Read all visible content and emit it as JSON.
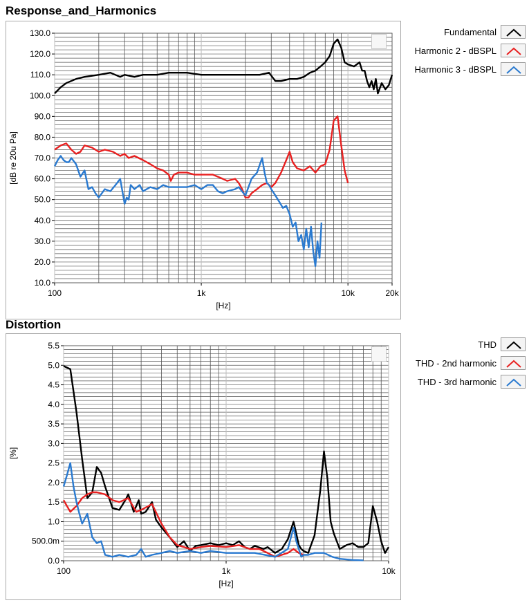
{
  "chart_data": [
    {
      "type": "line",
      "title": "Response_and_Harmonics",
      "xlabel": "[Hz]",
      "ylabel": "[dB re 20u Pa]",
      "xscale": "log",
      "xlim": [
        100,
        20000
      ],
      "ylim": [
        10,
        130
      ],
      "xticks": [
        100,
        1000,
        10000,
        20000
      ],
      "xtick_labels": [
        "100",
        "1k",
        "10k",
        "20k"
      ],
      "yticks": [
        10,
        20,
        30,
        40,
        50,
        60,
        70,
        80,
        90,
        100,
        110,
        120,
        130
      ],
      "ytick_labels": [
        "10.0",
        "20.0",
        "30.0",
        "40.0",
        "50.0",
        "60.0",
        "70.0",
        "80.0",
        "90.0",
        "100.0",
        "110.0",
        "120.0",
        "130.0"
      ],
      "grid": true,
      "legend_position": "right",
      "series": [
        {
          "name": "Fundamental",
          "color": "#000000",
          "x": [
            100,
            110,
            120,
            140,
            160,
            200,
            240,
            280,
            300,
            350,
            400,
            500,
            600,
            700,
            800,
            1000,
            1200,
            1500,
            2000,
            2500,
            2900,
            3200,
            3500,
            4000,
            4500,
            5000,
            5500,
            6000,
            6500,
            7000,
            7500,
            8000,
            8500,
            9000,
            9500,
            10000,
            11000,
            12000,
            12500,
            13000,
            13500,
            14000,
            14500,
            15000,
            15500,
            16000,
            17000,
            18000,
            19000,
            20000
          ],
          "y": [
            101,
            104,
            106,
            108,
            109,
            110,
            111,
            109,
            110,
            109,
            110,
            110,
            111,
            111,
            111,
            110,
            110,
            110,
            110,
            110,
            111,
            107,
            107,
            108,
            108,
            109,
            111,
            112,
            114,
            116,
            119,
            125,
            127,
            123,
            116,
            115,
            114,
            116,
            112,
            112,
            107,
            104,
            107,
            103,
            108,
            101,
            106,
            103,
            105,
            110
          ]
        },
        {
          "name": "Harmonic 2 - dBSPL",
          "color": "#e82020",
          "x": [
            100,
            110,
            120,
            130,
            140,
            150,
            160,
            180,
            200,
            220,
            250,
            280,
            300,
            320,
            350,
            400,
            450,
            500,
            550,
            600,
            620,
            650,
            700,
            800,
            900,
            1000,
            1200,
            1400,
            1500,
            1700,
            1800,
            1900,
            2000,
            2100,
            2200,
            2400,
            2600,
            2800,
            3000,
            3200,
            3500,
            3800,
            4000,
            4200,
            4500,
            5000,
            5500,
            6000,
            6500,
            7000,
            7500,
            8000,
            8500,
            9000,
            9500,
            10000
          ],
          "y": [
            74,
            76,
            77,
            74,
            72,
            73,
            76,
            75,
            73,
            74,
            73,
            71,
            72,
            70,
            71,
            69,
            67,
            65,
            64,
            62,
            59,
            62,
            63,
            63,
            62,
            62,
            62,
            60,
            59,
            60,
            58,
            55,
            51,
            51,
            53,
            55,
            57,
            58,
            56,
            58,
            63,
            69,
            73,
            68,
            65,
            64,
            66,
            63,
            66,
            67,
            74,
            88,
            90,
            76,
            64,
            58
          ]
        },
        {
          "name": "Harmonic 3 - dBSPL",
          "color": "#2a7ad0",
          "x": [
            100,
            105,
            110,
            115,
            120,
            125,
            130,
            140,
            150,
            160,
            170,
            180,
            190,
            200,
            220,
            240,
            260,
            280,
            300,
            310,
            320,
            330,
            350,
            380,
            400,
            450,
            500,
            550,
            600,
            700,
            800,
            900,
            1000,
            1100,
            1200,
            1300,
            1400,
            1500,
            1700,
            1800,
            2000,
            2200,
            2400,
            2600,
            2700,
            2800,
            2900,
            3000,
            3200,
            3400,
            3600,
            3800,
            4000,
            4200,
            4400,
            4600,
            4800,
            5000,
            5200,
            5400,
            5600,
            5800,
            6000,
            6200,
            6400,
            6600
          ],
          "y": [
            66,
            69,
            71,
            69,
            68,
            68,
            70,
            67,
            61,
            64,
            55,
            56,
            53,
            51,
            55,
            54,
            57,
            60,
            48,
            51,
            50,
            57,
            55,
            57,
            54,
            56,
            55,
            57,
            56,
            56,
            56,
            57,
            55,
            57,
            57,
            54,
            53,
            54,
            55,
            56,
            52,
            60,
            63,
            70,
            63,
            58,
            57,
            55,
            52,
            49,
            46,
            47,
            43,
            37,
            39,
            30,
            33,
            26,
            36,
            27,
            37,
            25,
            18,
            30,
            22,
            39
          ]
        }
      ]
    },
    {
      "type": "line",
      "title": "Distortion",
      "xlabel": "[Hz]",
      "ylabel": "[%]",
      "xscale": "log",
      "xlim": [
        100,
        10000
      ],
      "ylim": [
        0,
        5.5
      ],
      "xticks": [
        100,
        1000,
        10000
      ],
      "xtick_labels": [
        "100",
        "1k",
        "10k"
      ],
      "yticks": [
        0,
        0.5,
        1,
        1.5,
        2,
        2.5,
        3,
        3.5,
        4,
        4.5,
        5,
        5.5
      ],
      "ytick_labels": [
        "0.0",
        "500.0m",
        "1.0",
        "1.5",
        "2.0",
        "2.5",
        "3.0",
        "3.5",
        "4.0",
        "4.5",
        "5.0",
        "5.5"
      ],
      "grid": true,
      "legend_position": "right",
      "series": [
        {
          "name": "THD",
          "color": "#000000",
          "x": [
            100,
            110,
            120,
            130,
            140,
            150,
            160,
            170,
            180,
            200,
            220,
            240,
            250,
            270,
            290,
            300,
            320,
            350,
            370,
            400,
            450,
            500,
            550,
            600,
            650,
            700,
            800,
            900,
            1000,
            1100,
            1200,
            1300,
            1400,
            1500,
            1700,
            1800,
            2000,
            2200,
            2400,
            2600,
            2700,
            2800,
            2900,
            3000,
            3200,
            3500,
            3800,
            4000,
            4200,
            4400,
            4600,
            5000,
            5500,
            6000,
            6500,
            7000,
            7500,
            8000,
            8500,
            9000,
            9500,
            10000
          ],
          "y": [
            4.98,
            4.9,
            3.8,
            2.6,
            1.6,
            1.75,
            2.4,
            2.25,
            1.9,
            1.35,
            1.3,
            1.55,
            1.7,
            1.25,
            1.55,
            1.2,
            1.25,
            1.5,
            1.05,
            0.85,
            0.6,
            0.35,
            0.5,
            0.25,
            0.38,
            0.4,
            0.45,
            0.4,
            0.45,
            0.4,
            0.5,
            0.35,
            0.3,
            0.38,
            0.3,
            0.35,
            0.2,
            0.3,
            0.55,
            1.0,
            0.7,
            0.4,
            0.3,
            0.25,
            0.2,
            0.65,
            1.8,
            2.8,
            2.1,
            1.0,
            0.7,
            0.3,
            0.4,
            0.45,
            0.35,
            0.35,
            0.45,
            1.4,
            1.0,
            0.5,
            0.2,
            0.35
          ]
        },
        {
          "name": "THD - 2nd harmonic",
          "color": "#e82020",
          "x": [
            100,
            110,
            120,
            130,
            140,
            150,
            160,
            180,
            200,
            220,
            250,
            280,
            300,
            350,
            400,
            450,
            500,
            550,
            600,
            700,
            800,
            1000,
            1200,
            1400,
            1600,
            1800,
            2000,
            2200,
            2400,
            2600,
            2800,
            3000
          ],
          "y": [
            1.55,
            1.25,
            1.4,
            1.6,
            1.7,
            1.75,
            1.75,
            1.7,
            1.55,
            1.5,
            1.6,
            1.25,
            1.3,
            1.45,
            0.95,
            0.6,
            0.4,
            0.35,
            0.3,
            0.35,
            0.38,
            0.35,
            0.4,
            0.3,
            0.3,
            0.2,
            0.1,
            0.15,
            0.2,
            0.3,
            0.2,
            0.15
          ]
        },
        {
          "name": "THD - 3rd harmonic",
          "color": "#2a7ad0",
          "x": [
            100,
            105,
            110,
            115,
            120,
            125,
            130,
            140,
            150,
            160,
            170,
            180,
            200,
            220,
            250,
            280,
            300,
            320,
            350,
            400,
            450,
            500,
            600,
            700,
            800,
            1000,
            1200,
            1500,
            2000,
            2400,
            2600,
            2700,
            2800,
            2900,
            3000,
            3200,
            3500,
            4000,
            4500,
            5000,
            6000,
            7000
          ],
          "y": [
            1.9,
            2.2,
            2.5,
            1.9,
            1.5,
            1.2,
            0.95,
            1.2,
            0.6,
            0.45,
            0.5,
            0.15,
            0.1,
            0.15,
            0.1,
            0.15,
            0.3,
            0.1,
            0.15,
            0.2,
            0.25,
            0.2,
            0.25,
            0.2,
            0.25,
            0.2,
            0.2,
            0.2,
            0.1,
            0.3,
            0.85,
            0.5,
            0.3,
            0.1,
            0.15,
            0.15,
            0.2,
            0.2,
            0.1,
            0.05,
            0.02,
            0.01
          ]
        }
      ]
    }
  ]
}
